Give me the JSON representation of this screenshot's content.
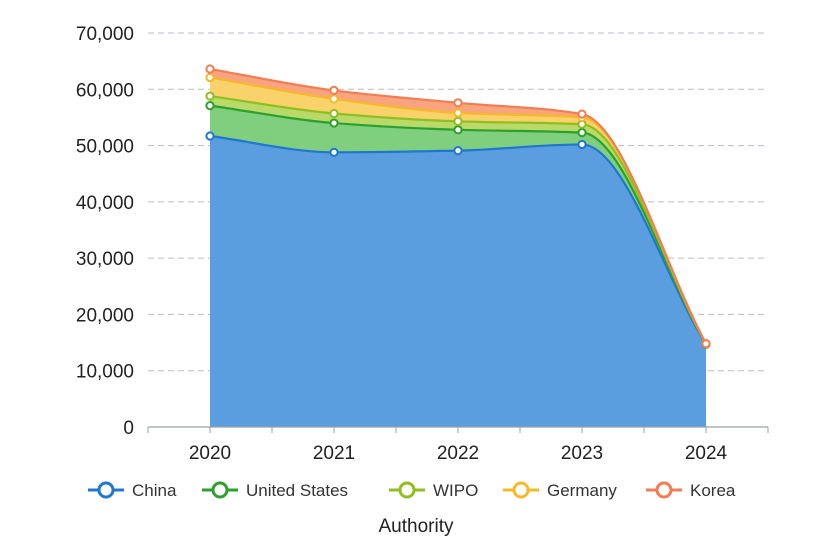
{
  "chart_data": {
    "type": "area",
    "stacked": true,
    "categories": [
      "2020",
      "2021",
      "2022",
      "2023",
      "2024"
    ],
    "series": [
      {
        "name": "China",
        "values": [
          51700,
          48800,
          49100,
          50200,
          14700
        ],
        "color": "#1f77d0",
        "fill": "#5b9ee0"
      },
      {
        "name": "United States",
        "values": [
          5400,
          5200,
          3700,
          2100,
          50
        ],
        "color": "#2ca02c",
        "fill": "#7fcf7f"
      },
      {
        "name": "WIPO",
        "values": [
          1700,
          1700,
          1500,
          1500,
          30
        ],
        "color": "#8fbf1f",
        "fill": "#b9d96a"
      },
      {
        "name": "Germany",
        "values": [
          3300,
          2600,
          1500,
          1200,
          20
        ],
        "color": "#f6b928",
        "fill": "#f9d26b"
      },
      {
        "name": "Korea",
        "values": [
          1500,
          1500,
          1800,
          600,
          0
        ],
        "color": "#f47c52",
        "fill": "#f8a47f"
      }
    ],
    "yticks": [
      "0",
      "10,000",
      "20,000",
      "30,000",
      "40,000",
      "50,000",
      "60,000",
      "70,000"
    ],
    "ylim": [
      0,
      70000
    ],
    "xlabel": "Authority",
    "ylabel": "",
    "title": "",
    "grid": true,
    "legend": "bottom"
  }
}
